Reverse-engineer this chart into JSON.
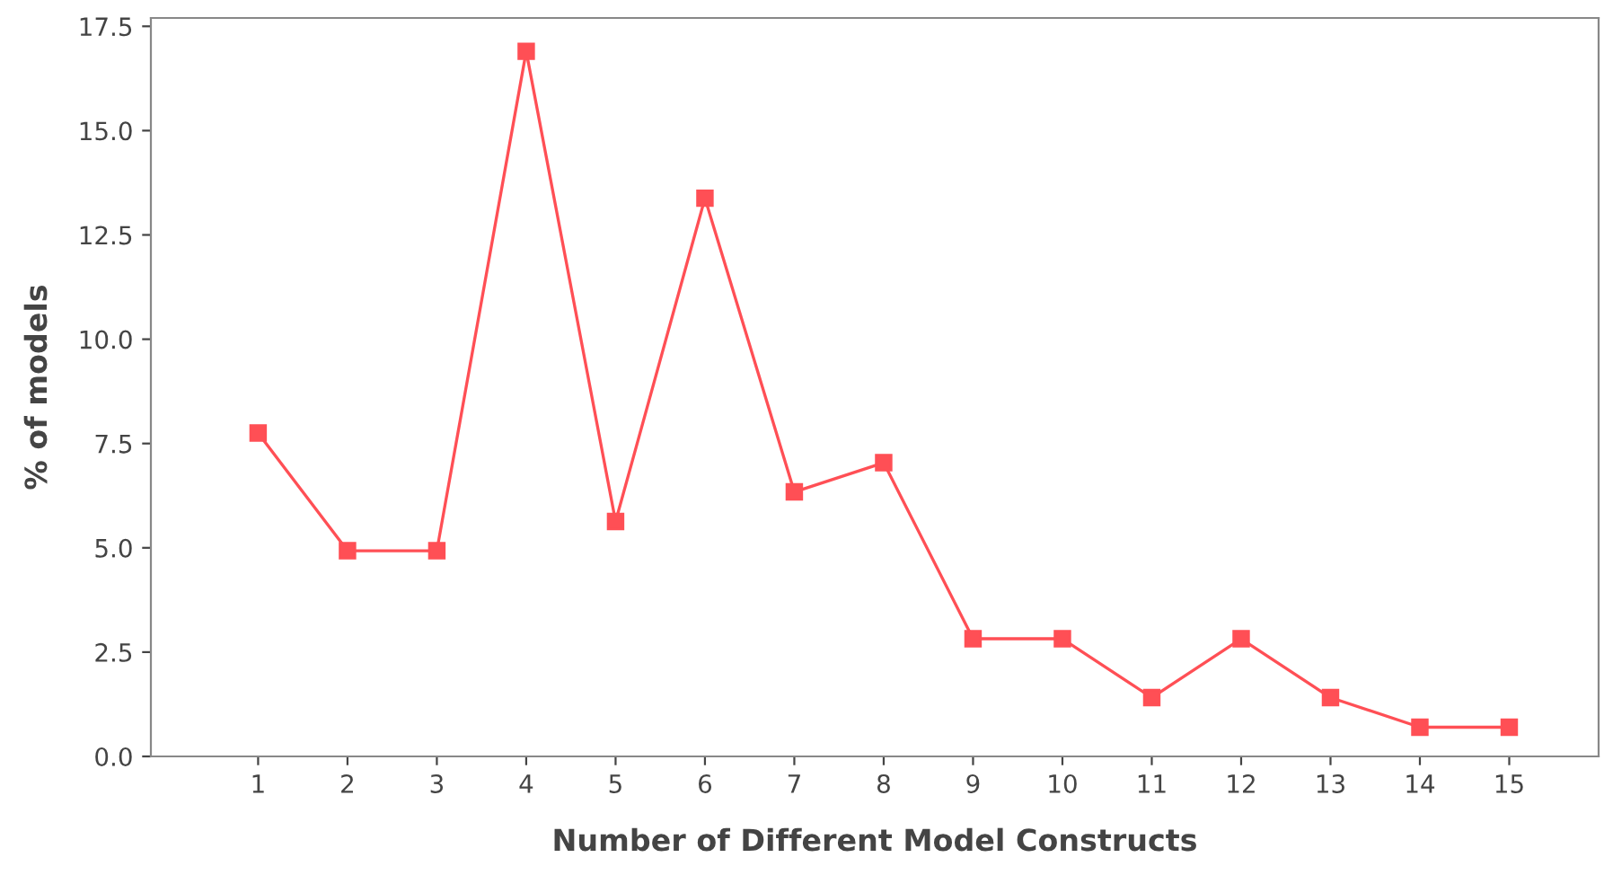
{
  "chart_data": {
    "type": "line",
    "xlabel": "Number of Different Model Constructs",
    "ylabel": "% of models",
    "categories": [
      "1",
      "2",
      "3",
      "4",
      "5",
      "6",
      "7",
      "8",
      "9",
      "10",
      "11",
      "12",
      "13",
      "14",
      "15"
    ],
    "series": [
      {
        "color": "#ff4f55",
        "values": [
          7.75,
          4.93,
          4.93,
          16.9,
          5.63,
          13.38,
          6.34,
          7.04,
          2.82,
          2.82,
          1.41,
          2.82,
          1.41,
          0.7,
          0.7
        ]
      }
    ],
    "ylim": [
      0,
      17.7
    ],
    "yticks": [
      {
        "value": 0,
        "label": "0.0"
      },
      2.5,
      {
        "value": 5,
        "label": "5.0"
      },
      7.5,
      {
        "value": 10,
        "label": "10.0"
      },
      12.5,
      {
        "value": 15,
        "label": "15.0"
      },
      17.5
    ],
    "marker": "square",
    "line_style": "solid",
    "grid": false,
    "legend": false
  }
}
